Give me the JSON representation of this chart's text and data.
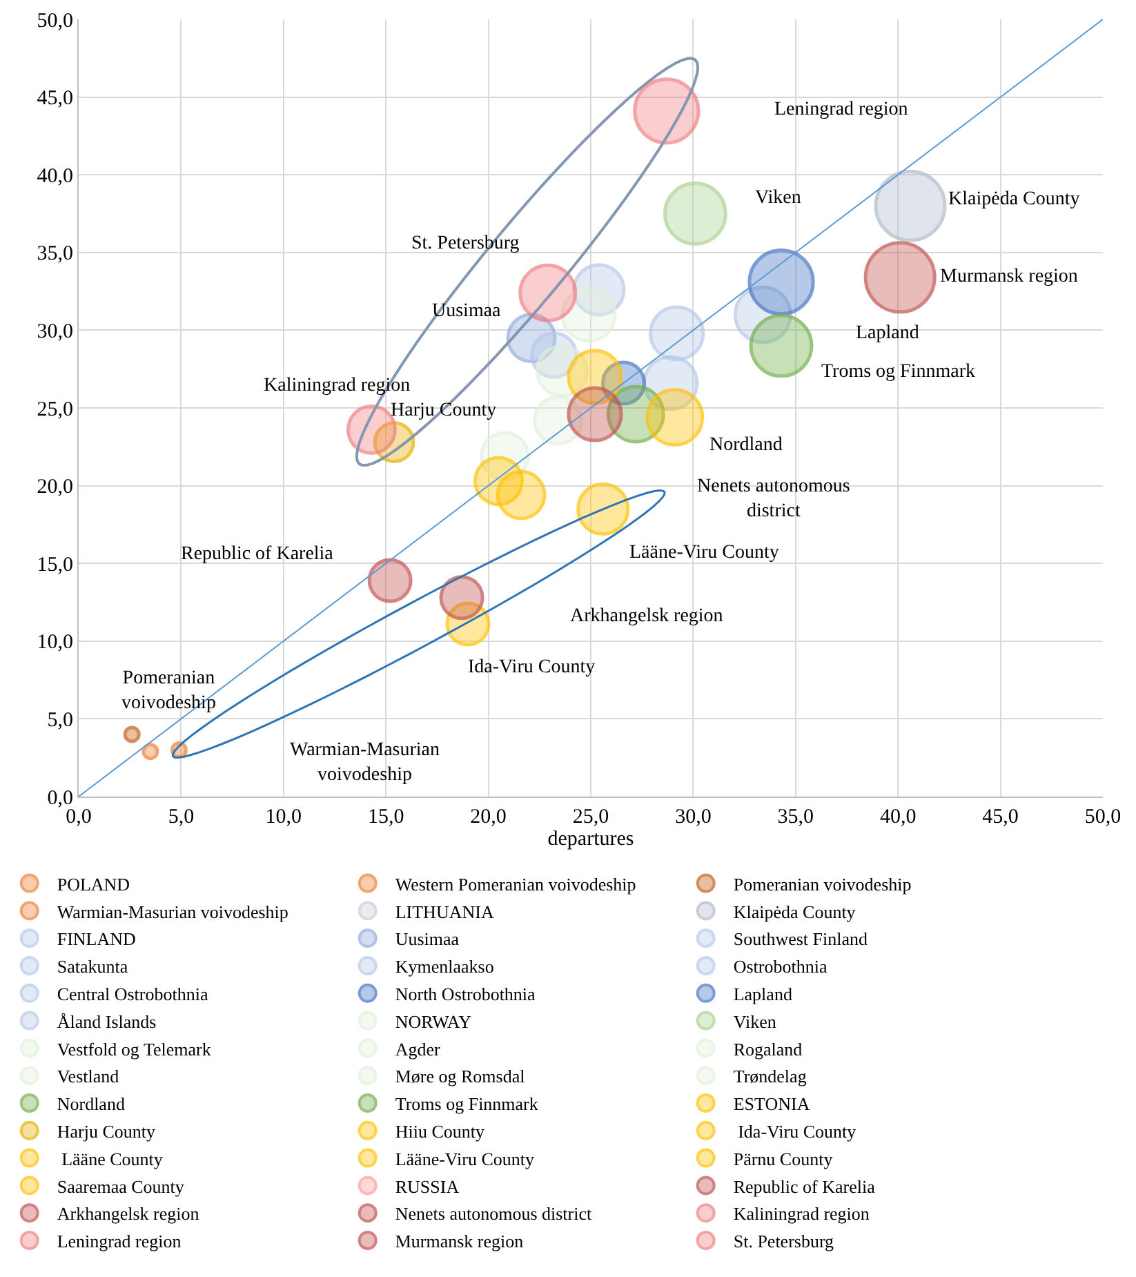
{
  "chart_data": {
    "type": "bubble",
    "xlabel": "departures",
    "xlim": [
      0,
      50
    ],
    "ylim": [
      0,
      50
    ],
    "xticks": [
      {
        "value": 0,
        "label": "0,0"
      },
      {
        "value": 5,
        "label": "5,0"
      },
      {
        "value": 10,
        "label": "10,0"
      },
      {
        "value": 15,
        "label": "15,0"
      },
      {
        "value": 20,
        "label": "20,0"
      },
      {
        "value": 25,
        "label": "25,0"
      },
      {
        "value": 30,
        "label": "30,0"
      },
      {
        "value": 35,
        "label": "35,0"
      },
      {
        "value": 40,
        "label": "40,0"
      },
      {
        "value": 45,
        "label": "45,0"
      },
      {
        "value": 50,
        "label": "50,0"
      }
    ],
    "yticks": [
      {
        "value": 0,
        "label": "0,0"
      },
      {
        "value": 5,
        "label": "5,0"
      },
      {
        "value": 10,
        "label": "10,0"
      },
      {
        "value": 15,
        "label": "15,0"
      },
      {
        "value": 20,
        "label": "20,0"
      },
      {
        "value": 25,
        "label": "25,0"
      },
      {
        "value": 30,
        "label": "30,0"
      },
      {
        "value": 35,
        "label": "35,0"
      },
      {
        "value": 40,
        "label": "40,0"
      },
      {
        "value": 45,
        "label": "45,0"
      },
      {
        "value": 50,
        "label": "50,0"
      }
    ],
    "grid": true,
    "legend": "bottom",
    "series": [
      {
        "name": "POLAND",
        "color": "#ed7d31",
        "x": [
          null
        ],
        "values": [
          null
        ],
        "sizes": [
          null
        ]
      },
      {
        "name": "Western Pomeranian voivodeship",
        "color": "#ed7d31",
        "x": [
          3.5
        ],
        "values": [
          2.9
        ],
        "sizes": [
          0.04
        ]
      },
      {
        "name": "Pomeranian voivodeship",
        "color": "#c55a11",
        "x": [
          2.6
        ],
        "values": [
          4.0
        ],
        "sizes": [
          0.04
        ]
      },
      {
        "name": "Warmian-Masurian voivodeship",
        "color": "#ed7d31",
        "x": [
          4.9
        ],
        "values": [
          3.0
        ],
        "sizes": [
          0.04
        ]
      },
      {
        "name": "LITHUANIA",
        "color": "#c5cdd9",
        "x": [
          null
        ],
        "values": [
          null
        ],
        "sizes": [
          null
        ]
      },
      {
        "name": "Klaipėda County",
        "color": "#adb9ca",
        "x": [
          40.6
        ],
        "values": [
          38.0
        ],
        "sizes": [
          1.0
        ]
      },
      {
        "name": "FINLAND",
        "color": "#b4c7e7",
        "x": [
          25.4
        ],
        "values": [
          32.6
        ],
        "sizes": [
          0.52
        ]
      },
      {
        "name": "Uusimaa",
        "color": "#8faadc",
        "x": [
          22.1
        ],
        "values": [
          29.5
        ],
        "sizes": [
          0.46
        ]
      },
      {
        "name": "Southwest Finland",
        "color": "#b4c7e7",
        "x": [
          29.2
        ],
        "values": [
          29.8
        ],
        "sizes": [
          0.58
        ]
      },
      {
        "name": "Satakunta",
        "color": "#b4c7e7",
        "x": [
          28.9
        ],
        "values": [
          26.6
        ],
        "sizes": [
          0.58
        ]
      },
      {
        "name": "Kymenlaakso",
        "color": "#b4c7e7",
        "x": [
          33.4
        ],
        "values": [
          31.0
        ],
        "sizes": [
          0.64
        ]
      },
      {
        "name": "Ostrobothnia",
        "color": "#b4c7e7",
        "x": [
          23.2
        ],
        "values": [
          28.4
        ],
        "sizes": [
          0.41
        ]
      },
      {
        "name": "Central Ostrobothnia",
        "color": "#b4c7e7",
        "x": [
          null
        ],
        "values": [
          null
        ],
        "sizes": [
          null
        ]
      },
      {
        "name": "North Ostrobothnia",
        "color": "#4472c4",
        "x": [
          26.6
        ],
        "values": [
          26.6
        ],
        "sizes": [
          0.36
        ]
      },
      {
        "name": "Lapland",
        "color": "#4472c4",
        "x": [
          34.3
        ],
        "values": [
          33.1
        ],
        "sizes": [
          0.85
        ]
      },
      {
        "name": "Åland Islands",
        "color": "#b4c7e7",
        "x": [
          null
        ],
        "values": [
          null
        ],
        "sizes": [
          null
        ]
      },
      {
        "name": "NORWAY",
        "color": "#e2f0d9",
        "x": [
          24.9
        ],
        "values": [
          31.0
        ],
        "sizes": [
          0.58
        ]
      },
      {
        "name": "Viken",
        "color": "#a9d18e",
        "x": [
          30.1
        ],
        "values": [
          37.5
        ],
        "sizes": [
          0.77
        ]
      },
      {
        "name": "Vestfold og Telemark",
        "color": "#e2f0d9",
        "x": [
          23.6
        ],
        "values": [
          27.4
        ],
        "sizes": [
          0.52
        ]
      },
      {
        "name": "Agder",
        "color": "#e2f0d9",
        "x": [
          23.4
        ],
        "values": [
          24.2
        ],
        "sizes": [
          0.46
        ]
      },
      {
        "name": "Rogaland",
        "color": "#e2f0d9",
        "x": [
          20.8
        ],
        "values": [
          21.9
        ],
        "sizes": [
          0.46
        ]
      },
      {
        "name": "Vestland",
        "color": "#e2f0d9",
        "x": [
          null
        ],
        "values": [
          null
        ],
        "sizes": [
          null
        ]
      },
      {
        "name": "Møre og Romsdal",
        "color": "#e2f0d9",
        "x": [
          null
        ],
        "values": [
          null
        ],
        "sizes": [
          null
        ]
      },
      {
        "name": "Trøndelag",
        "color": "#e2f0d9",
        "x": [
          null
        ],
        "values": [
          null
        ],
        "sizes": [
          null
        ]
      },
      {
        "name": "Nordland",
        "color": "#70ad47",
        "x": [
          27.2
        ],
        "values": [
          24.6
        ],
        "sizes": [
          0.64
        ]
      },
      {
        "name": "Troms og Finnmark",
        "color": "#70ad47",
        "x": [
          34.3
        ],
        "values": [
          29.0
        ],
        "sizes": [
          0.77
        ]
      },
      {
        "name": "ESTONIA",
        "color": "#ffc000",
        "x": [
          25.2
        ],
        "values": [
          27.0
        ],
        "sizes": [
          0.58
        ]
      },
      {
        "name": "Harju County",
        "color": "#e6ad00",
        "x": [
          15.4
        ],
        "values": [
          22.8
        ],
        "sizes": [
          0.31
        ]
      },
      {
        "name": "Hiiu County",
        "color": "#ffc000",
        "x": [
          20.5
        ],
        "values": [
          20.3
        ],
        "sizes": [
          0.46
        ]
      },
      {
        "name": " Ida-Viru County",
        "color": "#ffc000",
        "x": [
          19.0
        ],
        "values": [
          11.1
        ],
        "sizes": [
          0.36
        ]
      },
      {
        "name": " Lääne County",
        "color": "#ffc000",
        "x": [
          null
        ],
        "values": [
          null
        ],
        "sizes": [
          null
        ]
      },
      {
        "name": "Lääne-Viru County",
        "color": "#ffc000",
        "x": [
          25.6
        ],
        "values": [
          18.5
        ],
        "sizes": [
          0.52
        ]
      },
      {
        "name": "Pärnu County",
        "color": "#ffc000",
        "x": [
          29.1
        ],
        "values": [
          24.4
        ],
        "sizes": [
          0.64
        ]
      },
      {
        "name": "Saaremaa County",
        "color": "#ffc000",
        "x": [
          21.6
        ],
        "values": [
          19.4
        ],
        "sizes": [
          0.46
        ]
      },
      {
        "name": "RUSSIA",
        "color": "#ff9999",
        "x": [
          null
        ],
        "values": [
          null
        ],
        "sizes": [
          null
        ]
      },
      {
        "name": "Republic of Karelia",
        "color": "#c0504d",
        "x": [
          15.2
        ],
        "values": [
          13.9
        ],
        "sizes": [
          0.36
        ]
      },
      {
        "name": "Arkhangelsk region",
        "color": "#c0504d",
        "x": [
          18.7
        ],
        "values": [
          12.8
        ],
        "sizes": [
          0.36
        ]
      },
      {
        "name": "Nenets autonomous district",
        "color": "#c0504d",
        "x": [
          25.2
        ],
        "values": [
          24.6
        ],
        "sizes": [
          0.58
        ]
      },
      {
        "name": "Kaliningrad region",
        "color": "#f07c80",
        "x": [
          14.3
        ],
        "values": [
          23.6
        ],
        "sizes": [
          0.46
        ]
      },
      {
        "name": "Leningrad region",
        "color": "#f07c80",
        "x": [
          28.7
        ],
        "values": [
          44.1
        ],
        "sizes": [
          0.85
        ]
      },
      {
        "name": "Murmansk region",
        "color": "#c0504d",
        "x": [
          40.1
        ],
        "values": [
          33.4
        ],
        "sizes": [
          1.0
        ]
      },
      {
        "name": "St. Petersburg",
        "color": "#f07c80",
        "x": [
          22.9
        ],
        "values": [
          32.4
        ],
        "sizes": [
          0.64
        ]
      },
      {
        "type": "line",
        "color": "#5b9bd5",
        "x": [
          0,
          50
        ],
        "values": [
          0,
          50
        ]
      }
    ],
    "annotations": [
      "Leningrad region",
      "Viken",
      "Klaipėda County",
      "St. Petersburg",
      "Murmansk region",
      "Uusimaa",
      "Lapland",
      "Troms og Finnmark",
      "Kaliningrad region",
      "Harju County",
      "Nordland",
      "Nenets autonomous\ndistrict",
      "Republic of Karelia",
      "Lääne-Viru County",
      "Arkhangelsk region",
      "Ida-Viru County",
      "Pomeranian\nvoivodeship",
      "Warmian-Masurian\nvoivodeship"
    ]
  }
}
